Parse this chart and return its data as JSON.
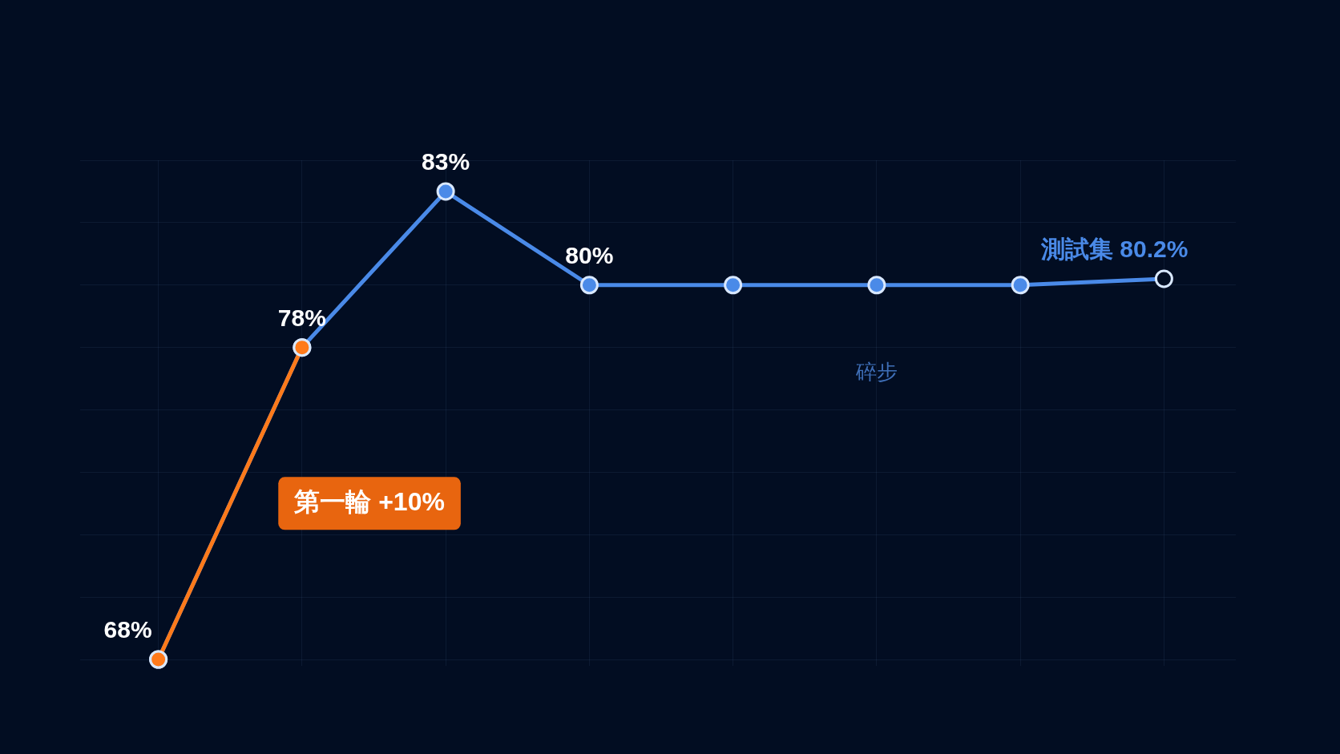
{
  "chart_data": {
    "type": "line",
    "categories": [
      null,
      null,
      null,
      null,
      null,
      null,
      null,
      null
    ],
    "series": [
      {
        "color": "#4a8ae8",
        "values": [
          68,
          78,
          83,
          80,
          80,
          80,
          80,
          80.2
        ],
        "value_labels": [
          "68%",
          "78%",
          "83%",
          "80%",
          null,
          null,
          null,
          "測試集 80.2%"
        ]
      },
      {
        "color": "#ff7a1a",
        "values": [
          68,
          78,
          null,
          null,
          null,
          null,
          null,
          null
        ]
      }
    ],
    "annotations": [
      "第一輪 +10%",
      "碎步"
    ],
    "marker": "circle",
    "line_style": "solid",
    "grid": true,
    "legend": false,
    "tick_labels": false
  }
}
